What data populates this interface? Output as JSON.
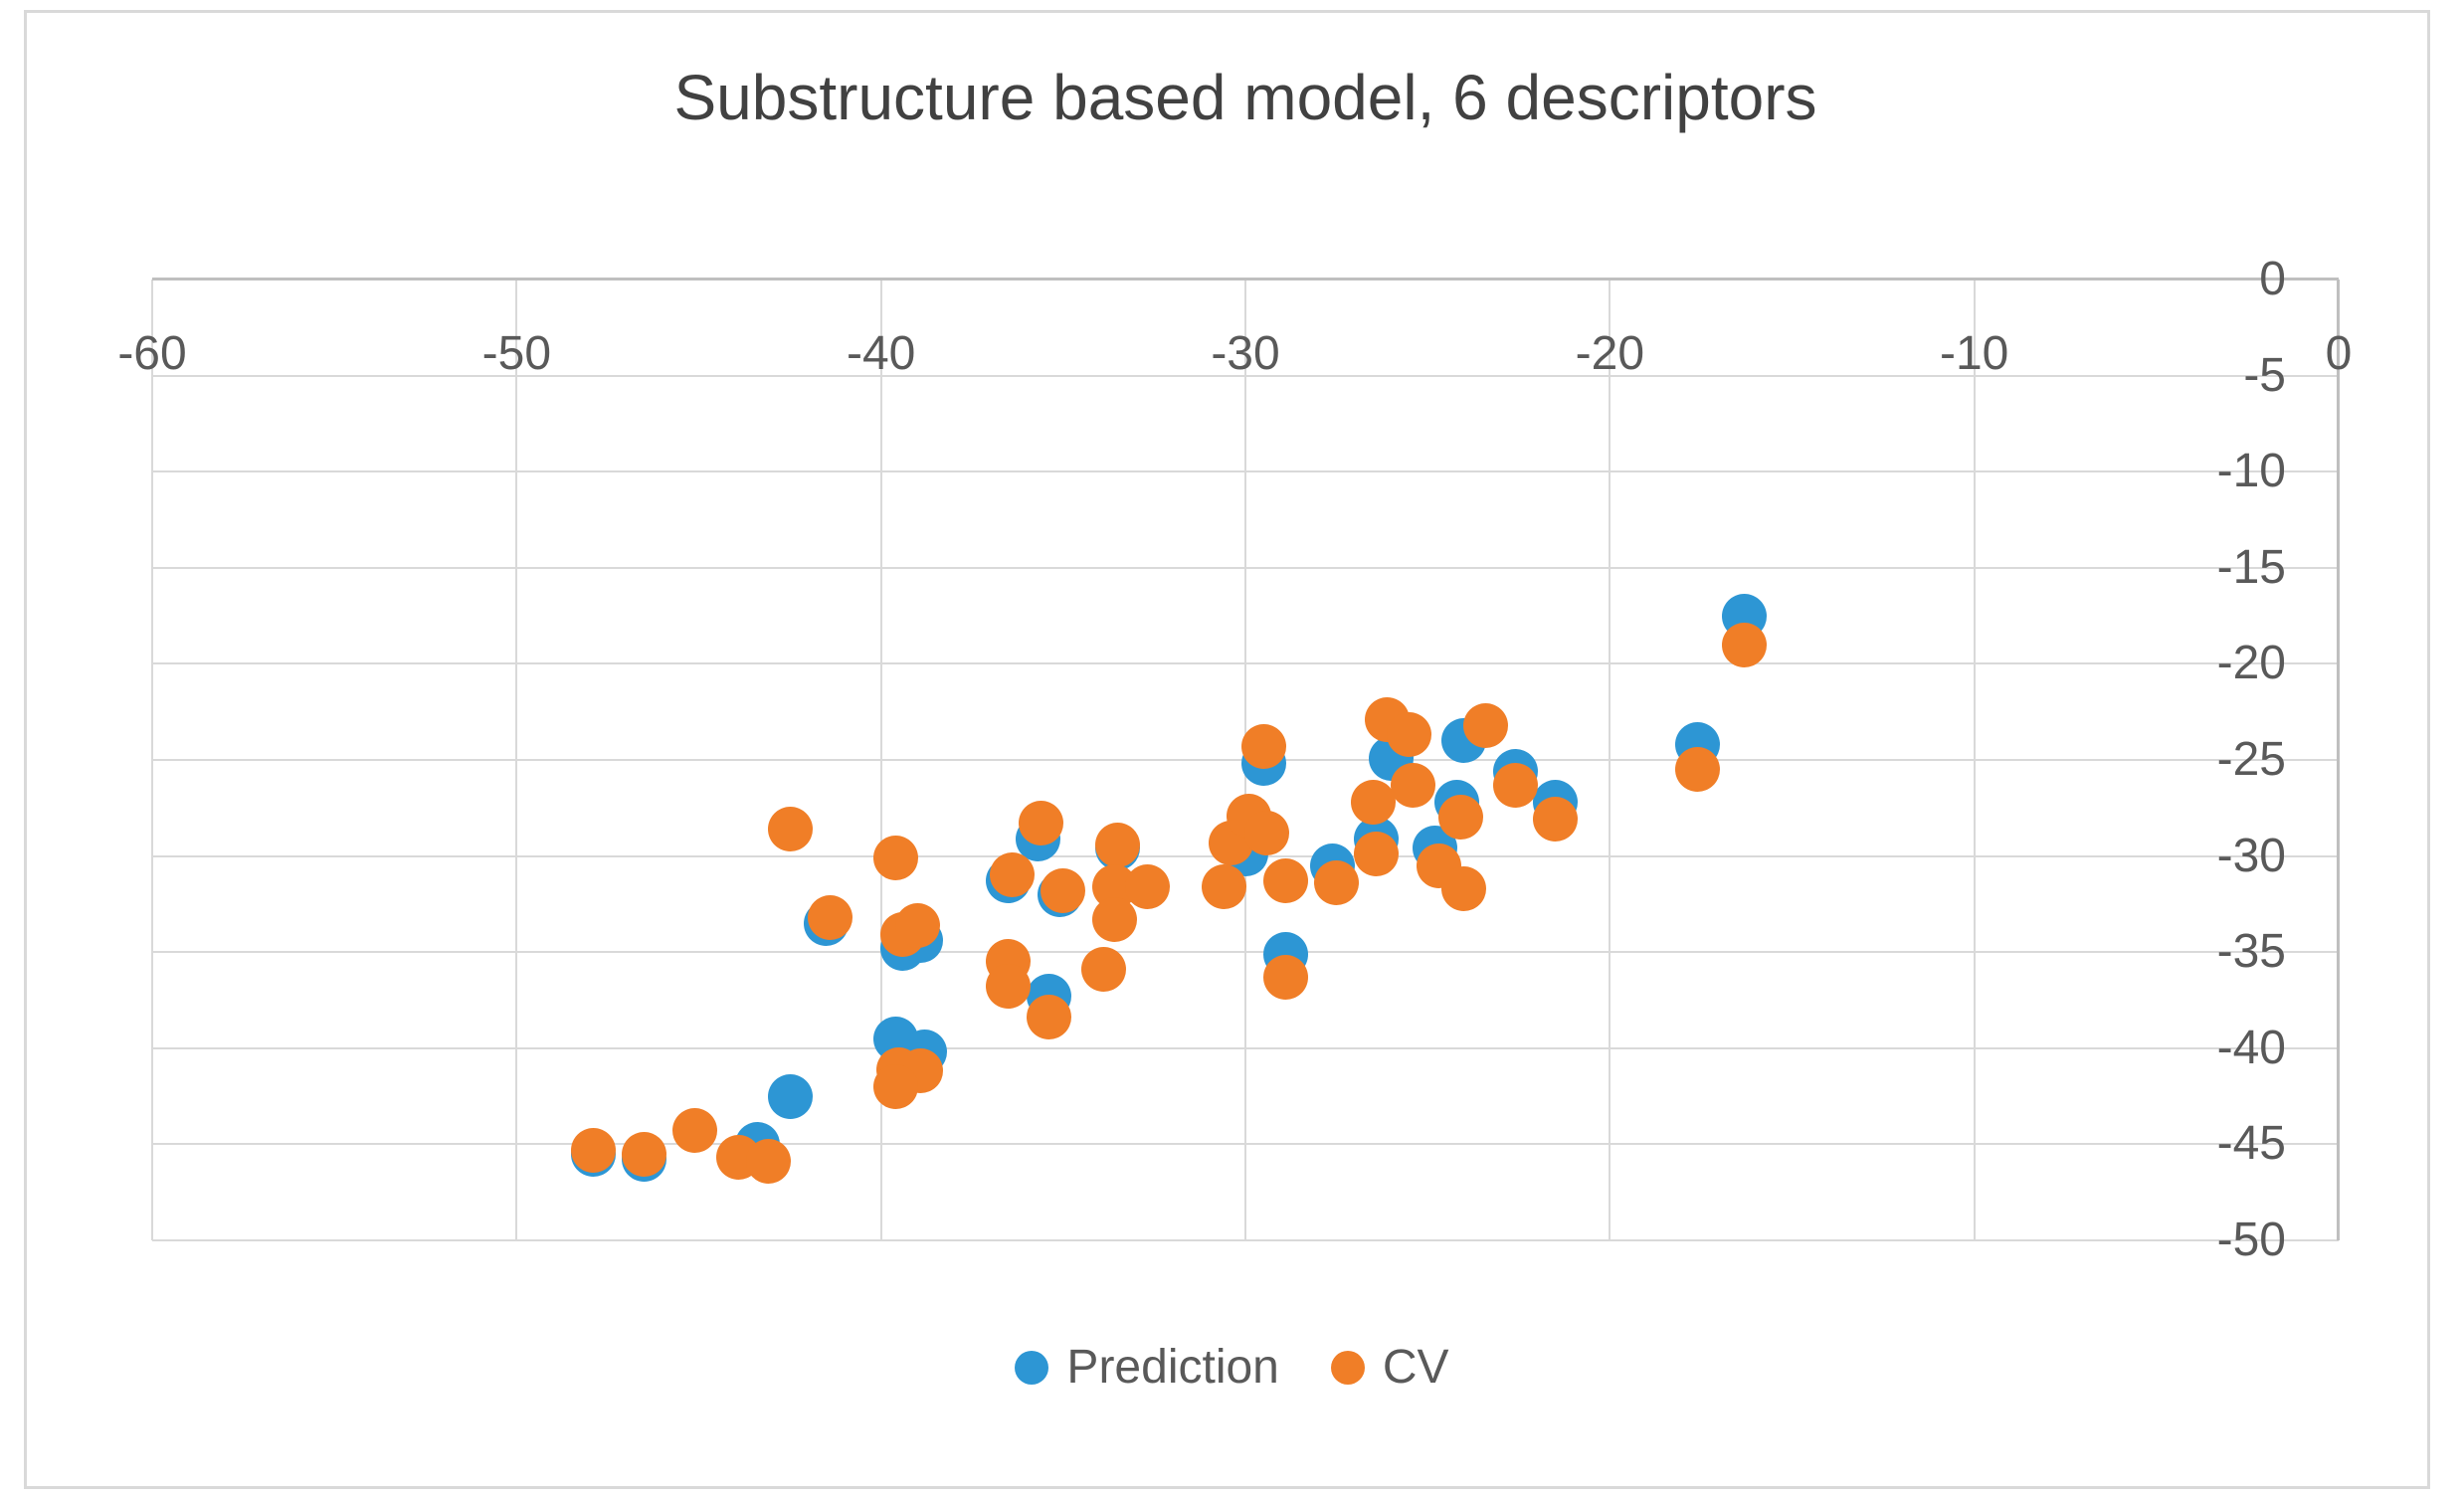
{
  "figure": {
    "title": "Substructure based model, 6 descriptors"
  },
  "colors": {
    "prediction_blue": "#2D96D4",
    "cv_orange": "#F07E27",
    "gridline": "#d9d9d9",
    "axis_line": "#bfbfbf",
    "tick_text": "#595959",
    "title_text": "#414141"
  },
  "chart_data": {
    "type": "scatter",
    "title": "Substructure based model, 6 descriptors",
    "xlabel": "",
    "ylabel": "",
    "xlim": [
      -60,
      0
    ],
    "ylim": [
      -50,
      0
    ],
    "x_ticks": [
      -60,
      -50,
      -40,
      -30,
      -20,
      -10,
      0
    ],
    "y_ticks": [
      0,
      -5,
      -10,
      -15,
      -20,
      -25,
      -30,
      -35,
      -40,
      -45,
      -50
    ],
    "grid": true,
    "x_axis_position": "top",
    "y_axis_position": "right",
    "legend_position": "bottom",
    "series": [
      {
        "name": "Prediction",
        "color": "#2D96D4",
        "points": [
          [
            -47.9,
            -45.5
          ],
          [
            -46.5,
            -45.8
          ],
          [
            -43.4,
            -45.0
          ],
          [
            -42.5,
            -42.5
          ],
          [
            -39.6,
            -39.5
          ],
          [
            -38.8,
            -40.2
          ],
          [
            -41.5,
            -33.5
          ],
          [
            -39.4,
            -34.8
          ],
          [
            -38.9,
            -34.4
          ],
          [
            -36.5,
            -31.3
          ],
          [
            -35.7,
            -29.1
          ],
          [
            -35.1,
            -32.0
          ],
          [
            -35.4,
            -37.3
          ],
          [
            -33.5,
            -29.6
          ],
          [
            -30.0,
            -29.9
          ],
          [
            -28.9,
            -35.1
          ],
          [
            -27.6,
            -30.5
          ],
          [
            -26.4,
            -29.1
          ],
          [
            -29.5,
            -25.2
          ],
          [
            -26.0,
            -24.9
          ],
          [
            -24.0,
            -24.0
          ],
          [
            -24.8,
            -29.6
          ],
          [
            -24.2,
            -27.2
          ],
          [
            -22.6,
            -25.6
          ],
          [
            -21.5,
            -27.2
          ],
          [
            -17.6,
            -24.2
          ],
          [
            -16.3,
            -17.5
          ]
        ]
      },
      {
        "name": "CV",
        "color": "#F07E27",
        "points": [
          [
            -47.9,
            -45.3
          ],
          [
            -46.5,
            -45.5
          ],
          [
            -45.1,
            -44.3
          ],
          [
            -43.9,
            -45.7
          ],
          [
            -43.1,
            -45.9
          ],
          [
            -42.5,
            -28.6
          ],
          [
            -41.4,
            -33.2
          ],
          [
            -39.6,
            -30.1
          ],
          [
            -39.5,
            -41.1
          ],
          [
            -38.9,
            -41.2
          ],
          [
            -39.6,
            -42.0
          ],
          [
            -39.4,
            -34.1
          ],
          [
            -39.0,
            -33.6
          ],
          [
            -36.4,
            -31.0
          ],
          [
            -36.5,
            -35.5
          ],
          [
            -36.5,
            -36.8
          ],
          [
            -35.6,
            -28.3
          ],
          [
            -35.0,
            -31.8
          ],
          [
            -35.4,
            -38.4
          ],
          [
            -33.9,
            -35.9
          ],
          [
            -33.5,
            -29.4
          ],
          [
            -33.6,
            -31.6
          ],
          [
            -32.7,
            -31.6
          ],
          [
            -33.6,
            -33.3
          ],
          [
            -30.4,
            -29.3
          ],
          [
            -29.9,
            -27.9
          ],
          [
            -29.4,
            -28.8
          ],
          [
            -30.6,
            -31.6
          ],
          [
            -28.9,
            -31.3
          ],
          [
            -28.9,
            -36.3
          ],
          [
            -27.5,
            -31.4
          ],
          [
            -26.4,
            -29.9
          ],
          [
            -26.5,
            -27.2
          ],
          [
            -25.4,
            -26.3
          ],
          [
            -29.5,
            -24.3
          ],
          [
            -26.1,
            -22.9
          ],
          [
            -25.5,
            -23.7
          ],
          [
            -23.4,
            -23.2
          ],
          [
            -24.1,
            -28.0
          ],
          [
            -24.7,
            -30.5
          ],
          [
            -24.0,
            -31.7
          ],
          [
            -22.6,
            -26.3
          ],
          [
            -21.5,
            -28.1
          ],
          [
            -17.6,
            -25.5
          ],
          [
            -16.3,
            -19.0
          ]
        ]
      }
    ]
  },
  "legend": {
    "items": [
      {
        "label": "Prediction",
        "color": "#2D96D4"
      },
      {
        "label": "CV",
        "color": "#F07E27"
      }
    ]
  }
}
